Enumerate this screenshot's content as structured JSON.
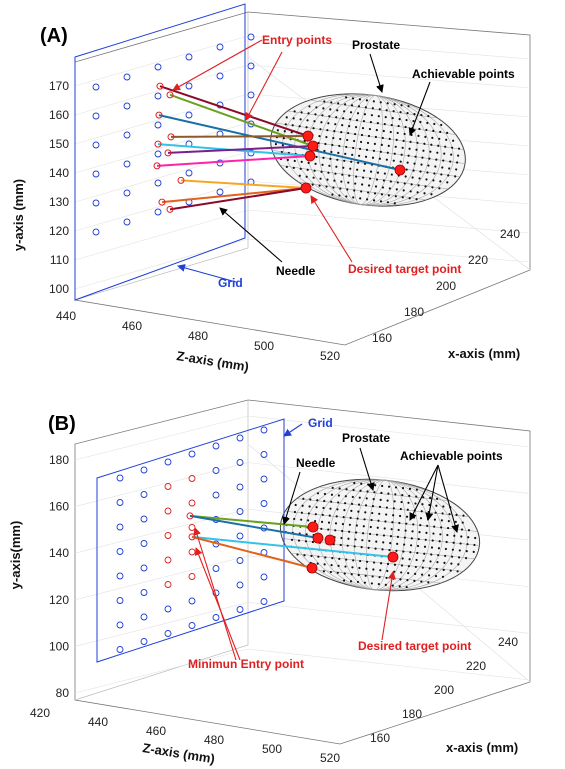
{
  "colors": {
    "grid_blue": "#1f3fd8",
    "entry_red": "#e02020",
    "annotation_black": "#000000",
    "prostate_gray": "#555555",
    "target_red": "#ff1a1a"
  },
  "chart_data": [
    {
      "type": "scatter3d",
      "panel_label": "(A)",
      "xlabel": "x-axis (mm)",
      "ylabel": "y-axis (mm)",
      "zlabel": "Z-axis (mm)",
      "x_ticks": [
        "160",
        "180",
        "200",
        "220",
        "240"
      ],
      "y_ticks": [
        "100",
        "110",
        "120",
        "130",
        "140",
        "150",
        "160",
        "170"
      ],
      "z_ticks": [
        "440",
        "460",
        "480",
        "500",
        "520"
      ],
      "grid": true,
      "annotations": {
        "entry_points": "Entry points",
        "prostate": "Prostate",
        "achievable_points": "Achievable points",
        "grid": "Grid",
        "needle": "Needle",
        "desired_target_point": "Desired target point"
      },
      "grid_holes_y": [
        115,
        125,
        135,
        145,
        155,
        165
      ],
      "entry_points": [
        {
          "y": 166.5,
          "color": "#e02020"
        },
        {
          "y": 163.5,
          "color": "#e02020"
        },
        {
          "y": 156.5,
          "color": "#e02020"
        },
        {
          "y": 149.0,
          "color": "#e02020"
        },
        {
          "y": 146.5,
          "color": "#e02020"
        },
        {
          "y": 143.5,
          "color": "#e02020"
        },
        {
          "y": 139.0,
          "color": "#e02020"
        },
        {
          "y": 134.0,
          "color": "#e02020"
        },
        {
          "y": 126.5,
          "color": "#e02020"
        },
        {
          "y": 124.0,
          "color": "#e02020"
        }
      ],
      "targets": [
        {
          "y": 152,
          "z": 505
        },
        {
          "y": 150,
          "z": 506
        },
        {
          "y": 147,
          "z": 505
        },
        {
          "y": 143,
          "z": 515
        },
        {
          "y": 138,
          "z": 504
        }
      ],
      "needles": [
        {
          "from": 0,
          "to": 0,
          "color": "#8b0a2a"
        },
        {
          "from": 1,
          "to": 1,
          "color": "#6aa121"
        },
        {
          "from": 2,
          "to": 3,
          "color": "#1a6fa8"
        },
        {
          "from": 3,
          "to": 0,
          "color": "#8b5a2b"
        },
        {
          "from": 4,
          "to": 2,
          "color": "#33c2e8"
        },
        {
          "from": 5,
          "to": 1,
          "color": "#7a1e8c"
        },
        {
          "from": 6,
          "to": 2,
          "color": "#ff22aa"
        },
        {
          "from": 7,
          "to": 4,
          "color": "#f5a623"
        },
        {
          "from": 8,
          "to": 4,
          "color": "#e2621b"
        },
        {
          "from": 9,
          "to": 4,
          "color": "#8b0a2a"
        }
      ]
    },
    {
      "type": "scatter3d",
      "panel_label": "(B)",
      "xlabel": "x-axis (mm)",
      "ylabel": "y-axis(mm)",
      "zlabel": "Z-axis (mm)",
      "x_ticks": [
        "160",
        "180",
        "200",
        "220",
        "240"
      ],
      "y_ticks": [
        "80",
        "100",
        "120",
        "140",
        "160",
        "180"
      ],
      "z_ticks": [
        "420",
        "440",
        "460",
        "480",
        "500",
        "520"
      ],
      "grid": true,
      "annotations": {
        "grid": "Grid",
        "prostate": "Prostate",
        "achievable_points": "Achievable points",
        "needle": "Needle",
        "desired_target_point": "Desired target point",
        "minimum_entry_point": "Minimun Entry point"
      },
      "grid_holes_y": [
        105,
        115,
        125,
        135,
        145,
        155,
        165,
        175
      ],
      "entry_points": [
        {
          "y": 156.0,
          "color": "#e02020"
        },
        {
          "y": 147.0,
          "color": "#e02020"
        }
      ],
      "targets": [
        {
          "y": 152,
          "z": 506
        },
        {
          "y": 149,
          "z": 507
        },
        {
          "y": 146,
          "z": 508
        },
        {
          "y": 141,
          "z": 516
        },
        {
          "y": 136,
          "z": 506
        }
      ],
      "needles": [
        {
          "from": 0,
          "to": 0,
          "color": "#6aa121"
        },
        {
          "from": 0,
          "to": 1,
          "color": "#1a6fa8"
        },
        {
          "from": 1,
          "to": 3,
          "color": "#33c2e8"
        },
        {
          "from": 1,
          "to": 4,
          "color": "#e2621b"
        }
      ]
    }
  ]
}
